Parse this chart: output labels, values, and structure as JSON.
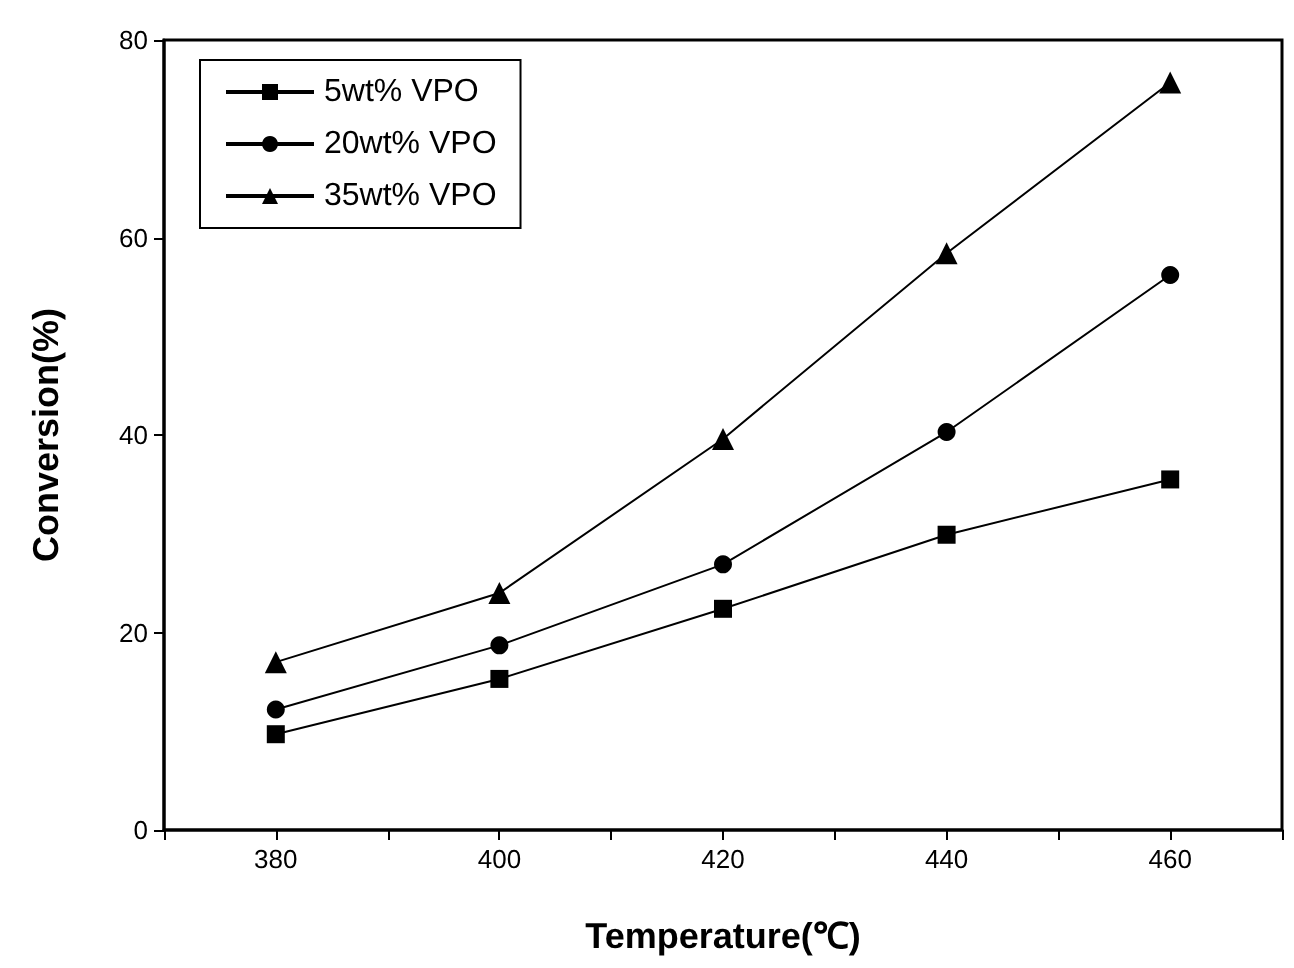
{
  "chart_data": {
    "type": "line",
    "xlabel": "Temperature(℃)",
    "ylabel": "Conversion(%)",
    "x": [
      380,
      400,
      420,
      440,
      460
    ],
    "series": [
      {
        "name": "5wt% VPO",
        "color": "#000000",
        "marker": "square",
        "values": [
          9.7,
          15.3,
          22.4,
          29.9,
          35.5
        ]
      },
      {
        "name": "20wt% VPO",
        "color": "#000000",
        "marker": "circle",
        "values": [
          12.2,
          18.7,
          26.9,
          40.3,
          56.2
        ]
      },
      {
        "name": "35wt% VPO",
        "color": "#000000",
        "marker": "triangle",
        "values": [
          17,
          24,
          39.6,
          58.4,
          75.7
        ]
      }
    ],
    "xlim": [
      370,
      470
    ],
    "xticks": [
      {
        "value": 370,
        "label": null
      },
      380,
      {
        "value": 390,
        "label": null
      },
      400,
      {
        "value": 410,
        "label": null
      },
      420,
      {
        "value": 430,
        "label": null
      },
      440,
      {
        "value": 450,
        "label": null
      },
      460,
      {
        "value": 470,
        "label": null
      }
    ],
    "ylim": [
      0,
      80
    ],
    "yticks": [
      0,
      20,
      40,
      60,
      80
    ],
    "grid": false,
    "legend": "top left",
    "line_style": "solid"
  }
}
